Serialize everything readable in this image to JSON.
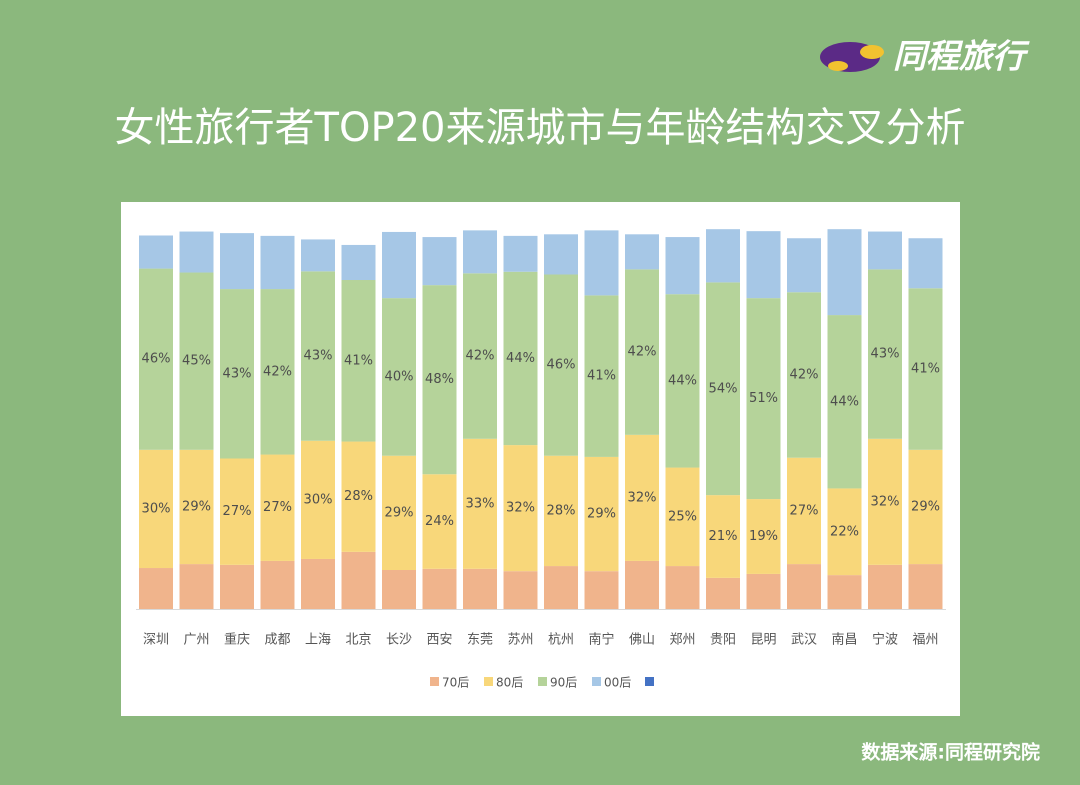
{
  "brand": "同程旅行",
  "source": "数据来源:同程研究院",
  "chart_data": {
    "type": "stacked_bar",
    "title": "女性旅行者TOP20来源城市与年龄结构交叉分析",
    "categories": [
      "深圳",
      "广州",
      "重庆",
      "成都",
      "上海",
      "北京",
      "长沙",
      "西安",
      "东莞",
      "苏州",
      "杭州",
      "南宁",
      "佛山",
      "郑州",
      "贵阳",
      "昆明",
      "武汉",
      "南昌",
      "宁波",
      "福州"
    ],
    "series": [
      {
        "name": "70后",
        "color": "#f0b48c",
        "values": [
          10.4,
          11.4,
          11.2,
          12.2,
          12.7,
          14.5,
          9.9,
          10.2,
          10.2,
          9.6,
          10.9,
          9.6,
          12.2,
          10.9,
          7.9,
          8.9,
          11.4,
          8.6,
          11.2,
          11.4
        ]
      },
      {
        "name": "80后",
        "color": "#f8d77a",
        "values": [
          30,
          29,
          27,
          27,
          30,
          28,
          29,
          24,
          33,
          32,
          28,
          29,
          32,
          25,
          21,
          19,
          27,
          22,
          32,
          29
        ],
        "value_labels": [
          "30%",
          "29%",
          "27%",
          "27%",
          "30%",
          "28%",
          "29%",
          "24%",
          "33%",
          "32%",
          "28%",
          "29%",
          "32%",
          "25%",
          "21%",
          "19%",
          "27%",
          "22%",
          "32%",
          "29%"
        ]
      },
      {
        "name": "90后",
        "color": "#b5d39a",
        "values": [
          46,
          45,
          43,
          42,
          43,
          41,
          40,
          48,
          42,
          44,
          46,
          41,
          42,
          44,
          54,
          51,
          42,
          44,
          43,
          41
        ],
        "value_labels": [
          "46%",
          "45%",
          "43%",
          "42%",
          "43%",
          "41%",
          "40%",
          "48%",
          "42%",
          "44%",
          "46%",
          "41%",
          "42%",
          "44%",
          "54%",
          "51%",
          "42%",
          "44%",
          "43%",
          "41%"
        ]
      },
      {
        "name": "00后",
        "color": "#a6c7e6",
        "values": [
          8.4,
          10.4,
          14.2,
          13.5,
          8.1,
          8.9,
          16.8,
          12.2,
          10.9,
          9.1,
          10.2,
          16.5,
          8.9,
          14.5,
          13.5,
          17,
          13.7,
          21.8,
          9.6,
          12.7
        ]
      }
    ]
  }
}
